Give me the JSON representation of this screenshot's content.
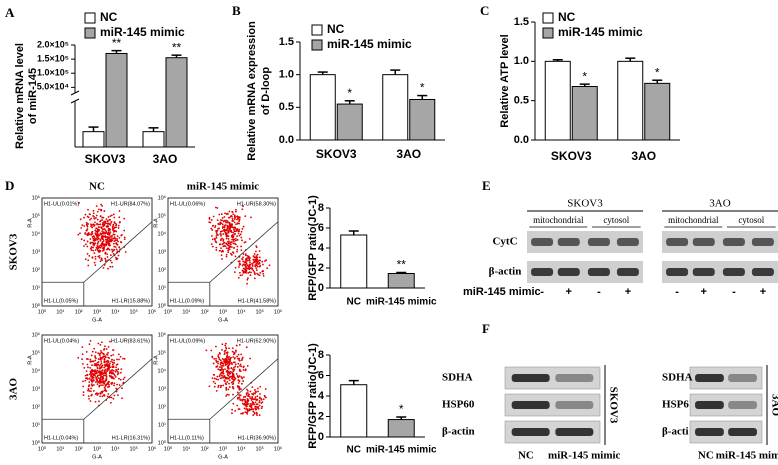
{
  "panel_labels": [
    "A",
    "B",
    "C",
    "D",
    "E",
    "F"
  ],
  "chart_data": [
    {
      "type": "bar",
      "ylabel": [
        "Relative mRNA level",
        "of miR-145"
      ],
      "categories": [
        "SKOV3",
        "3AO"
      ],
      "series": [
        {
          "name": "NC",
          "color": "#ffffff",
          "values": [
            1,
            1
          ],
          "errors": [
            0.3,
            0.25
          ]
        },
        {
          "name": "miR-145 mimic",
          "color": "#a6a6a6",
          "values": [
            170000,
            155000
          ],
          "errors": [
            10000,
            9000
          ],
          "significance": [
            "**",
            "**"
          ]
        }
      ],
      "ylim": [
        0,
        3
      ],
      "axis_break": true,
      "ylim_upper": [
        30000,
        200000
      ],
      "yticks_upper": [
        {
          "value": 50000,
          "label": "5.0×10⁴"
        },
        {
          "value": 100000,
          "label": "1.0×10⁵"
        },
        {
          "value": 150000,
          "label": "1.5×10⁵"
        },
        {
          "value": 200000,
          "label": "2.0×10⁵"
        }
      ]
    },
    {
      "type": "bar",
      "ylabel": [
        "Relative mRNA expression",
        "of D-loop"
      ],
      "categories": [
        "SKOV3",
        "3AO"
      ],
      "series": [
        {
          "name": "NC",
          "color": "#ffffff",
          "values": [
            1.0,
            1.0
          ],
          "errors": [
            0.04,
            0.07
          ]
        },
        {
          "name": "miR-145 mimic",
          "color": "#a6a6a6",
          "values": [
            0.55,
            0.62
          ],
          "errors": [
            0.05,
            0.06
          ],
          "significance": [
            "*",
            "*"
          ]
        }
      ],
      "ylim": [
        0,
        1.5
      ],
      "yticks": [
        {
          "value": 0,
          "label": "0.0"
        },
        0.5,
        {
          "value": 1,
          "label": "1.0"
        },
        1.5
      ]
    },
    {
      "type": "bar",
      "ylabel": [
        "Relative ATP level"
      ],
      "categories": [
        "SKOV3",
        "3AO"
      ],
      "series": [
        {
          "name": "NC",
          "color": "#ffffff",
          "values": [
            1.0,
            1.0
          ],
          "errors": [
            0.02,
            0.04
          ]
        },
        {
          "name": "miR-145 mimic",
          "color": "#a6a6a6",
          "values": [
            0.68,
            0.72
          ],
          "errors": [
            0.03,
            0.04
          ],
          "significance": [
            "*",
            "*"
          ]
        }
      ],
      "ylim": [
        0,
        1.5
      ],
      "yticks": [
        {
          "value": 0,
          "label": "0.0"
        },
        0.5,
        {
          "value": 1,
          "label": "1.0"
        },
        1.5
      ]
    },
    {
      "type": "bar",
      "ylabel": [
        "RFP/GFP ratio(JC-1)"
      ],
      "categories": [
        "NC",
        "miR-145 mimic"
      ],
      "values": [
        5.3,
        1.45
      ],
      "errors": [
        0.4,
        0.1
      ],
      "colors": [
        "#ffffff",
        "#a6a6a6"
      ],
      "significance": [
        null,
        "**"
      ],
      "ylim": [
        0,
        8
      ],
      "yticks": [
        0,
        2,
        4,
        6,
        8
      ]
    },
    {
      "type": "bar",
      "ylabel": [
        "RFP/GFP ratio(JC-1)"
      ],
      "categories": [
        "NC",
        "miR-145 mimic"
      ],
      "values": [
        5.1,
        1.7
      ],
      "errors": [
        0.4,
        0.25
      ],
      "colors": [
        "#ffffff",
        "#a6a6a6"
      ],
      "significance": [
        null,
        "*"
      ],
      "ylim": [
        0,
        8
      ],
      "yticks": [
        0,
        2,
        4,
        6,
        8
      ]
    }
  ],
  "flow": {
    "col_titles": [
      "NC",
      "miR-145 mimic"
    ],
    "row_labels": [
      "SKOV3",
      "3AO"
    ],
    "xlabel": "G-A",
    "ylabel": "R-A",
    "ticks": [
      "10⁰",
      "10¹",
      "10²",
      "10³",
      "10⁴",
      "10⁵",
      "10⁶"
    ],
    "plots": [
      [
        {
          "UL": "H1-UL(0.01%)",
          "UR": "H1-UR(84.07%)",
          "LL": "H1-LL(0.05%)",
          "LR": "H1-LR(15.88%)"
        },
        {
          "UL": "H1-UL(0.06%)",
          "UR": "H1-UR(58.30%)",
          "LL": "H1-LL(0.09%)",
          "LR": "H1-LR(41.58%)"
        }
      ],
      [
        {
          "UL": "H1-UL(0.04%)",
          "UR": "H1-UR(83.61%)",
          "LL": "H1-LL(0.04%)",
          "LR": "H1-LR(16.31%)"
        },
        {
          "UL": "H1-UL(0.09%)",
          "UR": "H1-UR(62.90%)",
          "LL": "H1-LL(0.11%)",
          "LR": "H1-LR(36.90%)"
        }
      ]
    ]
  },
  "blot_e": {
    "groups": [
      {
        "name": "SKOV3",
        "fractions": [
          "mitochondrial",
          "cytosol"
        ]
      },
      {
        "name": "3AO",
        "fractions": [
          "mitochondrial",
          "cytosol"
        ]
      }
    ],
    "rows": [
      "CytC",
      "β-actin"
    ],
    "treatment": "miR-145 mimic",
    "signs": [
      "-",
      "+",
      "-",
      "+"
    ]
  },
  "blot_f": {
    "panels": [
      {
        "cell": "SKOV3",
        "rows": [
          "SDHA",
          "HSP60",
          "β-actin"
        ]
      },
      {
        "cell": "3AO",
        "rows": [
          "SDHA",
          "HSP6",
          "β-acti"
        ]
      }
    ],
    "lanes": [
      "NC",
      "miR-145 mimic"
    ]
  }
}
